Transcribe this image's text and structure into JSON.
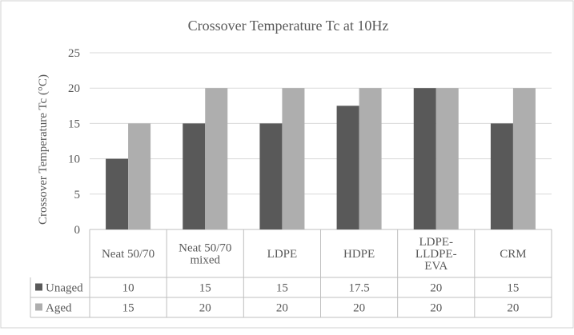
{
  "chart_data": {
    "type": "bar",
    "title": "Crossover Temperature Tc at 10Hz",
    "ylabel": "Crossover Temperature Tc (°C)",
    "xlabel": "",
    "ylim": [
      0,
      25
    ],
    "yticks": [
      0,
      5,
      10,
      15,
      20,
      25
    ],
    "grid": true,
    "legend": "data-table",
    "categories": [
      [
        "Neat 50/70"
      ],
      [
        "Neat 50/70",
        "mixed"
      ],
      [
        "LDPE"
      ],
      [
        "HDPE"
      ],
      [
        "LDPE-",
        "LLDPE-",
        "EVA"
      ],
      [
        "CRM"
      ]
    ],
    "series": [
      {
        "name": "Unaged",
        "color": "#595959",
        "values": [
          10,
          15,
          15,
          17.5,
          20,
          15
        ]
      },
      {
        "name": "Aged",
        "color": "#aeaeae",
        "values": [
          15,
          20,
          20,
          20,
          20,
          20
        ]
      }
    ]
  }
}
